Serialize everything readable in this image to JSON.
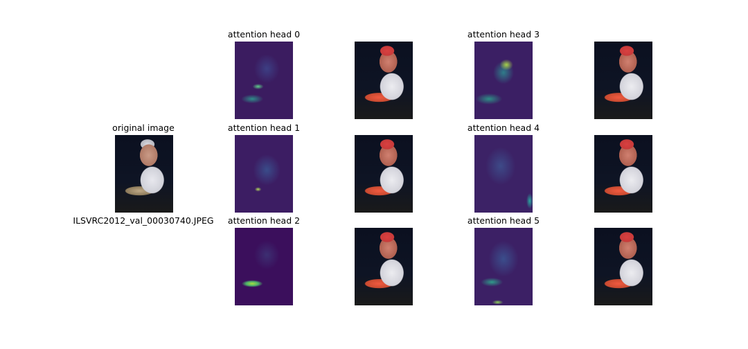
{
  "original": {
    "title": "original image",
    "filename": "ILSVRC2012_val_00030740.JPEG"
  },
  "heads": [
    {
      "title": "attention head 0"
    },
    {
      "title": "attention head 1"
    },
    {
      "title": "attention head 2"
    },
    {
      "title": "attention head 3"
    },
    {
      "title": "attention head 4"
    },
    {
      "title": "attention head 5"
    }
  ]
}
